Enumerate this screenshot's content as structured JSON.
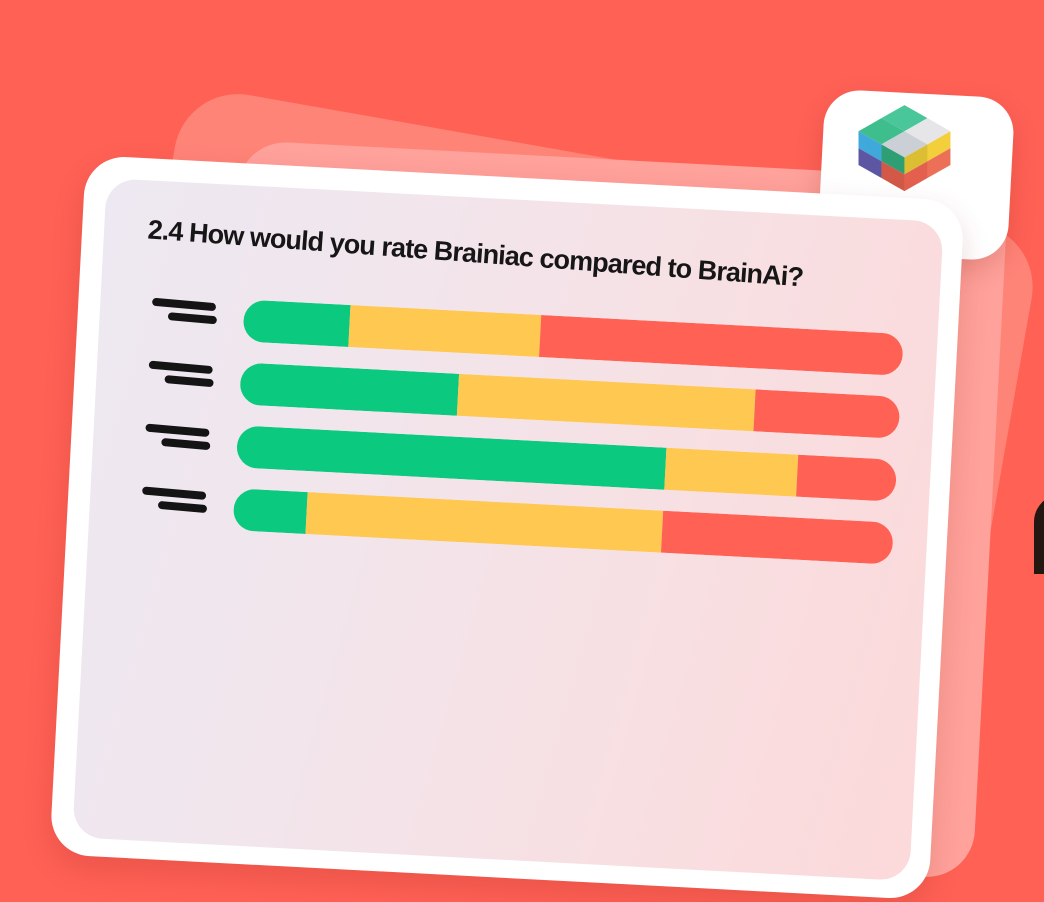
{
  "colors": {
    "background": "#FF6155",
    "back_card": "#FF8478",
    "mid_card": "#FFA29B",
    "card": "#FFFFFF",
    "panel_gradient": [
      "#EDE8F2",
      "#F2E5EB",
      "#FCD9DA"
    ],
    "title_text": "#161616",
    "label_dash": "#141414",
    "dark_corner": "#241712"
  },
  "logo": {
    "name": "cube-blocks-logo",
    "colors": {
      "top_n": "#4AC79A",
      "top_e": "#E6E6E8",
      "top_w": "#3FBE8D",
      "top_s": "#CBD0D6",
      "left_ul": "#3FA9DC",
      "left_ur": "#2E9E74",
      "left_ll": "#5D56A3",
      "left_lr": "#D25847",
      "right_ul": "#DCBE33",
      "right_ur": "#F3CF3C",
      "right_ll": "#E4604E",
      "right_lr": "#EC7058"
    }
  },
  "chart_data": {
    "type": "bar",
    "orientation": "horizontal",
    "stacked": true,
    "title": "2.4 How would you rate Brainiac compared to BrainAi?",
    "categories": [
      "",
      "",
      "",
      ""
    ],
    "labels_redacted": true,
    "value_unit": "percent",
    "series": [
      {
        "name": "green",
        "color": "#0BC97F",
        "values": [
          16,
          33,
          65,
          11
        ]
      },
      {
        "name": "yellow",
        "color": "#FFC850",
        "values": [
          29,
          45,
          20,
          54
        ]
      },
      {
        "name": "red",
        "color": "#FF6254",
        "values": [
          55,
          22,
          15,
          35
        ]
      }
    ]
  }
}
